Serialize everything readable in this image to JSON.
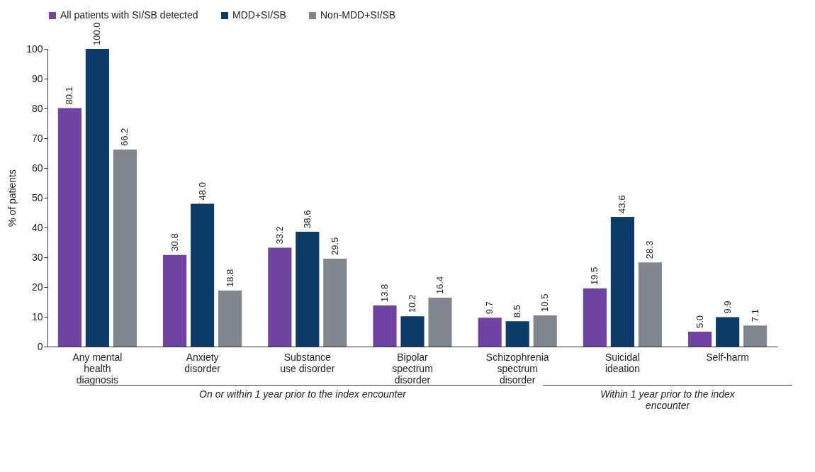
{
  "chart_data": {
    "type": "bar",
    "ylabel": "% of patients",
    "categories": [
      "Any mental health diagnosis",
      "Anxiety disorder",
      "Substance use disorder",
      "Bipolar spectrum disorder",
      "Schizophrenia spectrum disorder",
      "Suicidal ideation",
      "Self-harm"
    ],
    "series": [
      {
        "name": "All patients with SI/SB detected",
        "color": "#7042a2",
        "values": [
          80.1,
          30.8,
          33.2,
          13.8,
          9.7,
          19.5,
          5
        ],
        "value_labels": [
          "80.1",
          "30.8",
          "33.2",
          "13.8",
          "9.7",
          "19.5",
          "5.0"
        ]
      },
      {
        "name": "MDD+SI/SB",
        "color": "#0b3b69",
        "values": [
          100,
          48,
          38.6,
          10.2,
          8.5,
          43.6,
          9.9
        ],
        "value_labels": [
          "100.0",
          "48.0",
          "38.6",
          "10.2",
          "8.5",
          "43.6",
          "9.9"
        ]
      },
      {
        "name": "Non-MDD+SI/SB",
        "color": "#80868d",
        "values": [
          66.2,
          18.8,
          29.5,
          16.4,
          10.5,
          28.3,
          7.1
        ],
        "value_labels": [
          "66.2",
          "18.8",
          "29.5",
          "16.4",
          "10.5",
          "28.3",
          "7.1"
        ]
      }
    ],
    "ylim": [
      0,
      100
    ],
    "yticks": [
      0,
      10,
      20,
      30,
      40,
      50,
      60,
      70,
      80,
      90,
      100
    ],
    "grid": false,
    "legend": "top",
    "annotations": [
      "On or within 1 year prior to the index encounter",
      "Within 1 year prior to the index encounter"
    ]
  }
}
